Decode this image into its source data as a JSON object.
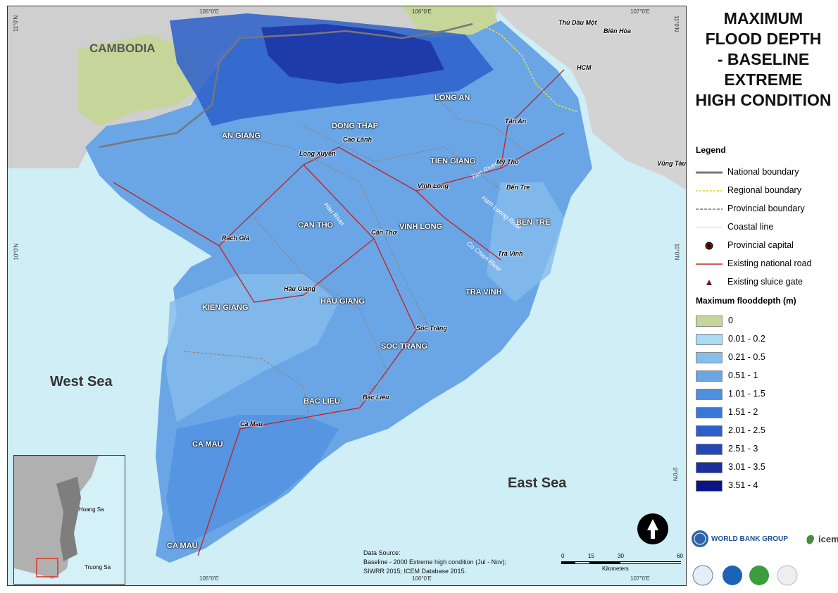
{
  "title": {
    "line1": "MAXIMUM",
    "line2": "FLOOD DEPTH",
    "line3": "- BASELINE",
    "line4": "EXTREME",
    "line5": "HIGH CONDITION"
  },
  "legend": {
    "title": "Legend",
    "items": [
      {
        "label": "National boundary",
        "icon": "national-boundary-line"
      },
      {
        "label": "Regional boundary",
        "icon": "regional-boundary-line"
      },
      {
        "label": "Provincial boundary",
        "icon": "provincial-boundary-line"
      },
      {
        "label": "Coastal line",
        "icon": "coastal-line"
      },
      {
        "label": "Provincial capital",
        "icon": "capital-dot"
      },
      {
        "label": "Existing national road",
        "icon": "road-line"
      },
      {
        "label": "Existing sluice gate",
        "icon": "sluice-triangle"
      }
    ]
  },
  "depth_legend": {
    "title": "Maximum flooddepth (m)",
    "classes": [
      {
        "label": "0",
        "color": "#c6d59a"
      },
      {
        "label": "0.01 - 0.2",
        "color": "#a9dbf2"
      },
      {
        "label": "0.21 - 0.5",
        "color": "#86bdec"
      },
      {
        "label": "0.51 - 1",
        "color": "#6aa6e6"
      },
      {
        "label": "1.01 - 1.5",
        "color": "#4f8fe0"
      },
      {
        "label": "1.51 - 2",
        "color": "#3a78d8"
      },
      {
        "label": "2.01 - 2.5",
        "color": "#2b5fc9"
      },
      {
        "label": "2.51 - 3",
        "color": "#2347b5"
      },
      {
        "label": "3.01 - 3.5",
        "color": "#1a2fa0"
      },
      {
        "label": "3.51 - 4",
        "color": "#0b1487"
      }
    ]
  },
  "graticule": {
    "top": [
      "105°0'E",
      "106°0'E",
      "107°0'E"
    ],
    "bottom": [
      "105°0'E",
      "106°0'E",
      "107°0'E"
    ],
    "left": [
      "11°0'N",
      "10°0'N"
    ],
    "right": [
      "11°0'N",
      "10°0'N",
      "9°0'N"
    ]
  },
  "countries": {
    "cambodia": "CAMBODIA"
  },
  "seas": {
    "west": "West Sea",
    "east": "East Sea"
  },
  "provinces": [
    "AN GIANG",
    "DONG THAP",
    "LONG AN",
    "TIEN GIANG",
    "BEN TRE",
    "CAN THO",
    "VINH LONG",
    "TRA VINH",
    "KIEN GIANG",
    "HAU GIANG",
    "SOC TRANG",
    "BAC LIEU",
    "CA MAU",
    "CA MAU"
  ],
  "cities": [
    "Thủ Dầu Một",
    "Biên Hòa",
    "HCM",
    "Tân An",
    "Mỹ Tho",
    "Vũng Tàu",
    "Bến Tre",
    "Cao Lãnh",
    "Long Xuyên",
    "Vĩnh Long",
    "Cần Thơ",
    "Rạch Giá",
    "Trà Vinh",
    "Hậu Giang",
    "Sóc Trăng",
    "Bạc Liêu",
    "Cà Mau"
  ],
  "rivers": [
    "Tien River",
    "Hau River",
    "Ham Luong River",
    "Co Chien River"
  ],
  "data_source": {
    "line1": "Data Source:",
    "line2": "Baseline - 2000 Extreme high condition (Jul - Nov);",
    "line3": "SIWRR 2015; ICEM Database 2015."
  },
  "scale": {
    "ticks": [
      "0",
      "15",
      "30",
      "60"
    ],
    "unit": "Kilometers"
  },
  "inset": {
    "labels": [
      "Hoang Sa",
      "Truong Sa"
    ]
  },
  "logos": {
    "world_bank": "WORLD BANK GROUP",
    "icem": "icem"
  },
  "north_arrow": "north-arrow-icon"
}
